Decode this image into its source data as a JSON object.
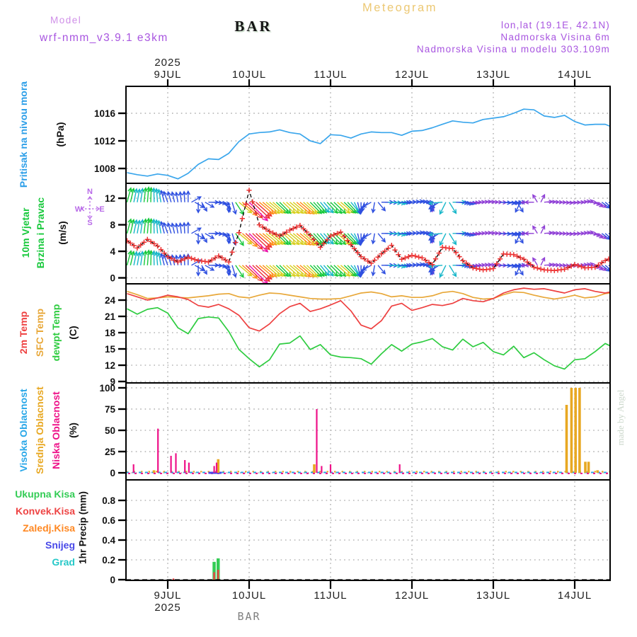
{
  "header": {
    "meteogram_title": "Meteogram",
    "model_label": "Model",
    "model_name": "wrf-nmm_v3.9.1 e3km",
    "station": "BAR",
    "lonlat": "lon,lat (19.1E, 42.1N)",
    "elevation": "Nadmorska Visina 6m",
    "model_elevation": "Nadmorska Visina u modelu 303.109m"
  },
  "watermark": "made by Angel",
  "footer": {
    "station": "BAR"
  },
  "axis": {
    "year": "2025",
    "days": [
      9,
      10,
      11,
      12,
      13,
      14
    ],
    "day_labels": [
      "9JUL",
      "10JUL",
      "11JUL",
      "12JUL",
      "13JUL",
      "14JUL"
    ],
    "x_start": 8.49,
    "x_end": 14.44
  },
  "colors": {
    "pressure_line": "#3aa6ec",
    "pressure_label": "#2b9ee8",
    "wind_label": "#18c93c",
    "compass": "#b86ae8",
    "temp_2m": "#ee4040",
    "temp_sfc": "#e8a83a",
    "temp_dewpt": "#2ecc40",
    "cloud_visoka": "#28a7e8",
    "cloud_srednja": "#e8a822",
    "cloud_niska": "#ee1188",
    "precip_ukupna": "#33cc55",
    "precip_konvek": "#ee4444",
    "precip_zaledj": "#ff8822",
    "precip_snijeg": "#4848e8",
    "precip_grad": "#27c8c8",
    "purple": "#a855e0",
    "violet": "#cf8fe8",
    "gold": "#ecc873",
    "grid": "#b5b5b5",
    "watermark": "#ccd8cc",
    "wind_scale": [
      "#8f3fd6",
      "#2e4fe0",
      "#17b6c9",
      "#17c93c",
      "#d8cf1f",
      "#ff8e17",
      "#ee3333",
      "#ee11aa"
    ],
    "wind_scale_limits": [
      2.2,
      4.2,
      5.2,
      6.6,
      7.6,
      9.0,
      12.5
    ]
  },
  "panels": {
    "pressure": {
      "label": "Pritisak na nivou mora",
      "unit": "(hPa)",
      "yticks": [
        "1008",
        "1012",
        "1016"
      ],
      "ytick_vals": [
        1008,
        1012,
        1016
      ]
    },
    "wind": {
      "label1": "10m Vjetar",
      "label2": "Brzina i Pravac",
      "unit": "(m/s)",
      "compass": {
        "n": "N",
        "e": "E",
        "s": "S",
        "w": "W"
      },
      "yticks": [
        "0",
        "4",
        "8",
        "12"
      ],
      "ytick_vals": [
        0,
        4,
        8,
        12
      ]
    },
    "temp": {
      "label_2m": "2m Temp",
      "label_sfc": "SFC Temp",
      "label_dewpt": "dewpt Temp",
      "unit": "(C)",
      "yticks": [
        "9",
        "12",
        "15",
        "18",
        "21",
        "24"
      ],
      "ytick_vals": [
        9,
        12,
        15,
        18,
        21,
        24
      ]
    },
    "cloud": {
      "label_visoka": "Visoka Oblacnost",
      "label_srednja": "Srednja Oblacnost",
      "label_niska": "Niska Oblacnost",
      "unit": "(%)",
      "yticks": [
        "0",
        "25",
        "50",
        "75",
        "100"
      ],
      "ytick_vals": [
        0,
        25,
        50,
        75,
        100
      ]
    },
    "precip": {
      "label_ukupna": "Ukupna Kisa",
      "label_konvek": "Konvek.Kisa",
      "label_zaledj": "Zaledj.Kisa",
      "label_snijeg": "Snijeg",
      "label_grad": "Grad",
      "unit": "1hr Precip (mm)",
      "yticks": [
        "0",
        "0.2",
        "0.4",
        "0.6",
        "0.8"
      ],
      "ytick_vals": [
        0,
        0.2,
        0.4,
        0.6,
        0.8
      ]
    }
  },
  "chart_data": [
    {
      "type": "line",
      "panel": "pressure",
      "title": "Pritisak na nivou mora",
      "ylabel": "hPa",
      "t0": 8.5,
      "dt": 0.125,
      "ylim": [
        1006,
        1020
      ],
      "values": [
        1007.4,
        1007.1,
        1006.9,
        1007.2,
        1007.0,
        1006.5,
        1007.3,
        1008.6,
        1009.4,
        1009.3,
        1010.2,
        1011.9,
        1013.0,
        1013.2,
        1013.3,
        1013.6,
        1013.2,
        1013.0,
        1012.0,
        1011.6,
        1012.9,
        1012.8,
        1012.4,
        1013.0,
        1013.3,
        1013.2,
        1013.2,
        1012.8,
        1013.4,
        1013.5,
        1013.9,
        1014.4,
        1014.9,
        1014.7,
        1014.6,
        1015.1,
        1015.3,
        1015.5,
        1016.0,
        1016.6,
        1016.5,
        1015.6,
        1015.4,
        1015.7,
        1014.8,
        1014.3,
        1014.4,
        1014.4,
        1013.8
      ]
    },
    {
      "type": "wind-vectors",
      "panel": "wind",
      "title": "10m Vjetar Brzina i Pravac",
      "ylabel": "m/s",
      "t0": 8.5,
      "dt": 0.125,
      "ylim": [
        0,
        14
      ],
      "arrow_rows": [
        11.4,
        6.7,
        1.9
      ],
      "speed": [
        5.6,
        4.5,
        5.8,
        4.8,
        3.2,
        2.4,
        3.1,
        2.6,
        2.4,
        3.3,
        2.4,
        6.8,
        13.2,
        8.0,
        7.0,
        6.3,
        7.2,
        7.9,
        6.4,
        4.6,
        6.3,
        6.9,
        5.0,
        3.2,
        2.2,
        3.6,
        4.9,
        2.8,
        3.4,
        3.0,
        2.0,
        4.6,
        4.4,
        2.6,
        1.5,
        1.2,
        1.4,
        3.6,
        3.5,
        2.8,
        1.6,
        1.2,
        1.1,
        1.3,
        2.0,
        1.5,
        1.6,
        2.6,
        3.3
      ],
      "dir_deg": [
        75,
        80,
        85,
        95,
        110,
        100,
        90,
        270,
        0,
        350,
        270,
        320,
        315,
        320,
        320,
        315,
        320,
        320,
        315,
        310,
        315,
        320,
        310,
        270,
        210,
        0,
        355,
        0,
        5,
        0,
        270,
        185,
        0,
        350,
        0,
        5,
        0,
        355,
        0,
        185,
        180,
        5,
        0,
        355,
        0,
        10,
        330,
        320,
        0
      ]
    },
    {
      "type": "line",
      "panel": "temp",
      "title": "Temperature",
      "ylabel": "C",
      "t0": 8.5,
      "dt": 0.125,
      "ylim": [
        9,
        27
      ],
      "series": [
        {
          "name": "SFC Temp",
          "color_key": "temp_sfc",
          "values": [
            25.6,
            25.0,
            24.3,
            24.4,
            24.6,
            24.5,
            24.4,
            24.6,
            24.8,
            25.1,
            25.2,
            24.6,
            24.4,
            24.9,
            25.3,
            25.2,
            24.9,
            24.6,
            24.3,
            24.2,
            24.2,
            24.3,
            24.8,
            25.3,
            25.5,
            25.2,
            24.6,
            24.8,
            24.5,
            24.5,
            24.8,
            25.4,
            25.6,
            25.2,
            24.5,
            24.2,
            24.3,
            25.0,
            25.5,
            25.4,
            24.9,
            24.5,
            24.2,
            24.5,
            24.9,
            24.4,
            24.6,
            25.2,
            25.4
          ]
        },
        {
          "name": "2m Temp",
          "color_key": "temp_2m",
          "values": [
            25.2,
            24.6,
            24.0,
            24.4,
            24.9,
            24.6,
            24.1,
            23.0,
            22.7,
            23.2,
            22.4,
            21.2,
            18.9,
            18.3,
            19.6,
            21.5,
            22.8,
            23.4,
            21.9,
            22.4,
            23.1,
            23.9,
            22.0,
            19.4,
            18.7,
            20.2,
            22.9,
            23.4,
            22.1,
            22.6,
            23.2,
            23.0,
            23.4,
            24.3,
            23.9,
            23.7,
            24.3,
            25.3,
            25.9,
            26.2,
            26.0,
            26.1,
            25.7,
            25.3,
            25.9,
            26.1,
            25.6,
            25.3,
            25.7
          ]
        },
        {
          "name": "dewpt Temp",
          "color_key": "temp_dewpt",
          "values": [
            22.4,
            21.4,
            22.3,
            22.6,
            21.6,
            18.9,
            17.8,
            20.6,
            20.9,
            20.7,
            18.2,
            14.9,
            13.2,
            11.7,
            13.0,
            15.9,
            16.1,
            17.4,
            14.9,
            15.8,
            13.9,
            13.5,
            13.4,
            13.2,
            12.2,
            14.1,
            15.8,
            14.6,
            15.9,
            16.3,
            16.9,
            15.4,
            14.8,
            16.8,
            15.4,
            16.2,
            14.5,
            13.9,
            15.5,
            13.4,
            14.3,
            13.0,
            11.9,
            11.3,
            13.0,
            13.2,
            14.5,
            16.0,
            15.1
          ]
        }
      ]
    },
    {
      "type": "bar",
      "panel": "cloud",
      "title": "Oblacnost",
      "ylabel": "%",
      "ylim": [
        0,
        100
      ],
      "series": [
        {
          "name": "Visoka Oblacnost",
          "color_key": "cloud_visoka",
          "points": []
        },
        {
          "name": "Srednja Oblacnost",
          "color_key": "cloud_srednja",
          "points": [
            [
              8.83,
              3
            ],
            [
              9.62,
              16
            ],
            [
              10.8,
              10
            ],
            [
              13.9,
              80
            ],
            [
              13.96,
              100
            ],
            [
              14.01,
              100
            ],
            [
              14.06,
              100
            ],
            [
              14.13,
              13
            ],
            [
              14.17,
              13
            ],
            [
              14.28,
              3
            ]
          ]
        },
        {
          "name": "Niska Oblacnost",
          "color_key": "cloud_niska",
          "points": [
            [
              8.58,
              10
            ],
            [
              8.88,
              52
            ],
            [
              9.04,
              20
            ],
            [
              9.1,
              23
            ],
            [
              9.21,
              15
            ],
            [
              9.26,
              12
            ],
            [
              9.57,
              8
            ],
            [
              9.6,
              12
            ],
            [
              10.83,
              75
            ],
            [
              10.89,
              8
            ],
            [
              11.0,
              10
            ],
            [
              11.85,
              10
            ]
          ]
        }
      ],
      "baseline_segment": {
        "color_key": "precip_snijeg",
        "from": 9.5,
        "to": 9.66
      }
    },
    {
      "type": "bar",
      "panel": "precip",
      "title": "1hr Precip",
      "ylabel": "mm",
      "ylim": [
        0,
        1.0
      ],
      "series": [
        {
          "name": "Ukupna Kisa",
          "color_key": "precip_ukupna",
          "points": [
            [
              9.57,
              0.18
            ],
            [
              9.62,
              0.215
            ]
          ]
        },
        {
          "name": "Konvek.Kisa",
          "color_key": "precip_konvek",
          "points": [
            [
              9.07,
              0.012
            ],
            [
              9.57,
              0.075
            ],
            [
              9.62,
              0.1
            ]
          ]
        },
        {
          "name": "Zaledj.Kisa",
          "color_key": "precip_zaledj",
          "points": []
        },
        {
          "name": "Snijeg",
          "color_key": "precip_snijeg",
          "points": []
        },
        {
          "name": "Grad",
          "color_key": "precip_grad",
          "points": []
        }
      ]
    }
  ]
}
